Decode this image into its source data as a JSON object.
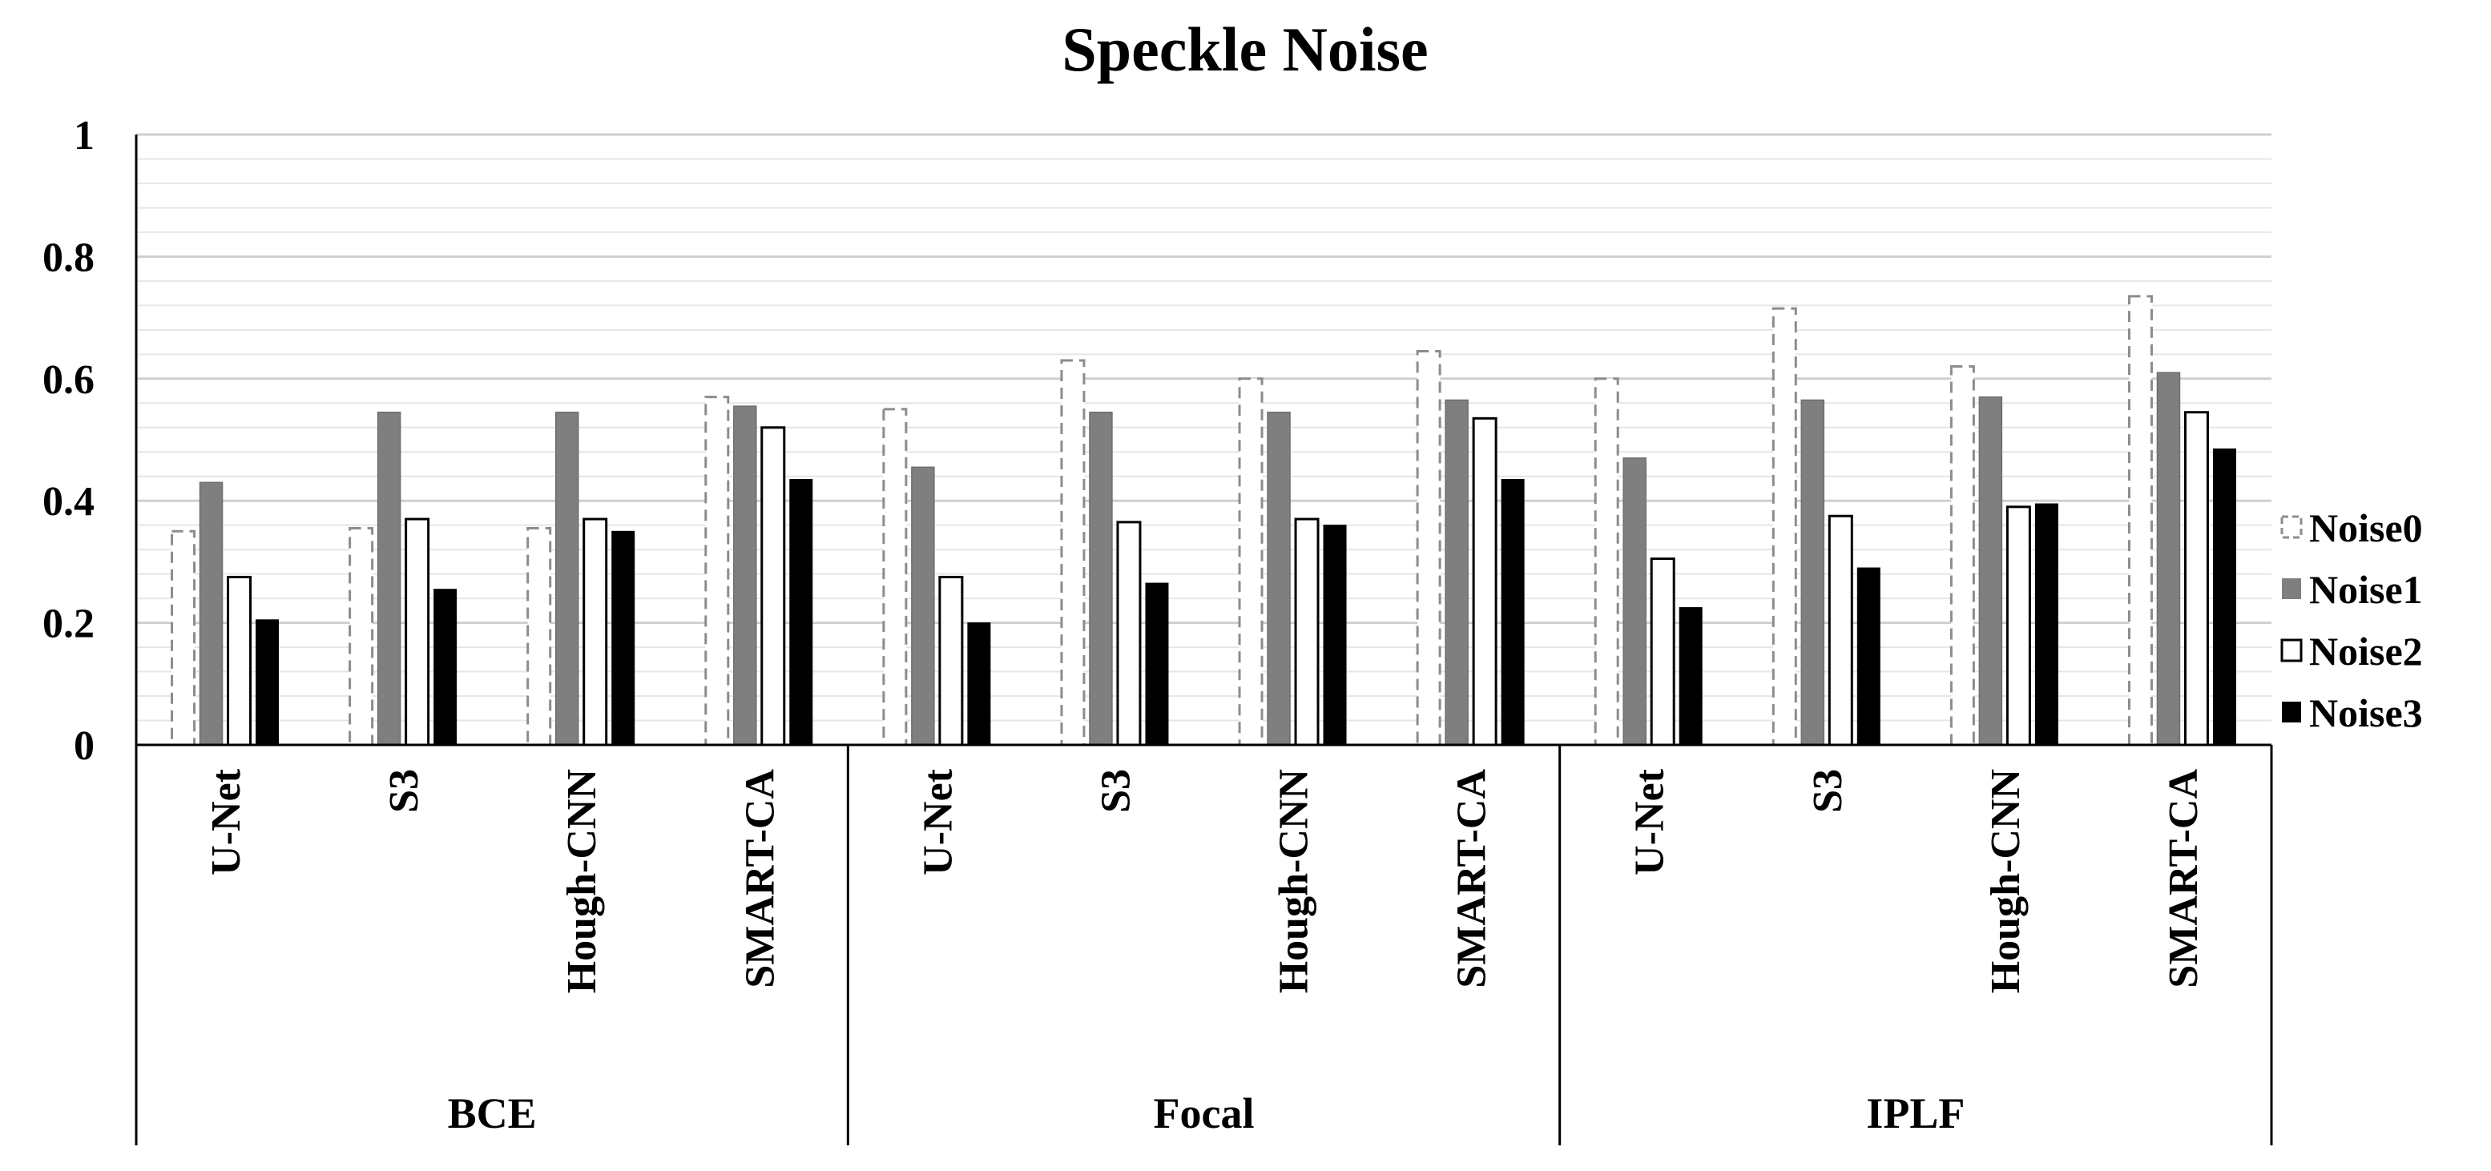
{
  "chart_data": {
    "type": "bar",
    "title": "Speckle Noise",
    "xlabel": "",
    "ylabel": "",
    "ylim": [
      0,
      1
    ],
    "yticks": [
      "0",
      "0.2",
      "0.4",
      "0.6",
      "0.8",
      "1"
    ],
    "grid": true,
    "legend_position": "right",
    "groups": [
      {
        "label": "BCE",
        "categories": [
          "U-Net",
          "S3",
          "Hough-CNN",
          "SMART-CA"
        ]
      },
      {
        "label": "Focal",
        "categories": [
          "U-Net",
          "S3",
          "Hough-CNN",
          "SMART-CA"
        ]
      },
      {
        "label": "IPLF",
        "categories": [
          "U-Net",
          "S3",
          "Hough-CNN",
          "SMART-CA"
        ]
      }
    ],
    "series": [
      {
        "name": "Noise0",
        "style": "dashed",
        "values": [
          0.35,
          0.355,
          0.355,
          0.57,
          0.55,
          0.63,
          0.6,
          0.645,
          0.6,
          0.715,
          0.62,
          0.735
        ]
      },
      {
        "name": "Noise1",
        "style": "gray",
        "values": [
          0.43,
          0.545,
          0.545,
          0.555,
          0.455,
          0.545,
          0.545,
          0.565,
          0.47,
          0.565,
          0.57,
          0.61
        ]
      },
      {
        "name": "Noise2",
        "style": "white",
        "values": [
          0.275,
          0.37,
          0.37,
          0.52,
          0.275,
          0.365,
          0.37,
          0.535,
          0.305,
          0.375,
          0.39,
          0.545
        ]
      },
      {
        "name": "Noise3",
        "style": "black",
        "values": [
          0.205,
          0.255,
          0.35,
          0.435,
          0.2,
          0.265,
          0.36,
          0.435,
          0.225,
          0.29,
          0.395,
          0.485
        ]
      }
    ],
    "colors": {
      "Noise0": "#ffffff",
      "Noise0_stroke": "#8c8c8c",
      "Noise1": "#7f7f7f",
      "Noise2": "#ffffff",
      "Noise3": "#000000",
      "grid_major": "#cfcfcf",
      "grid_minor": "#e6e6e6"
    }
  }
}
